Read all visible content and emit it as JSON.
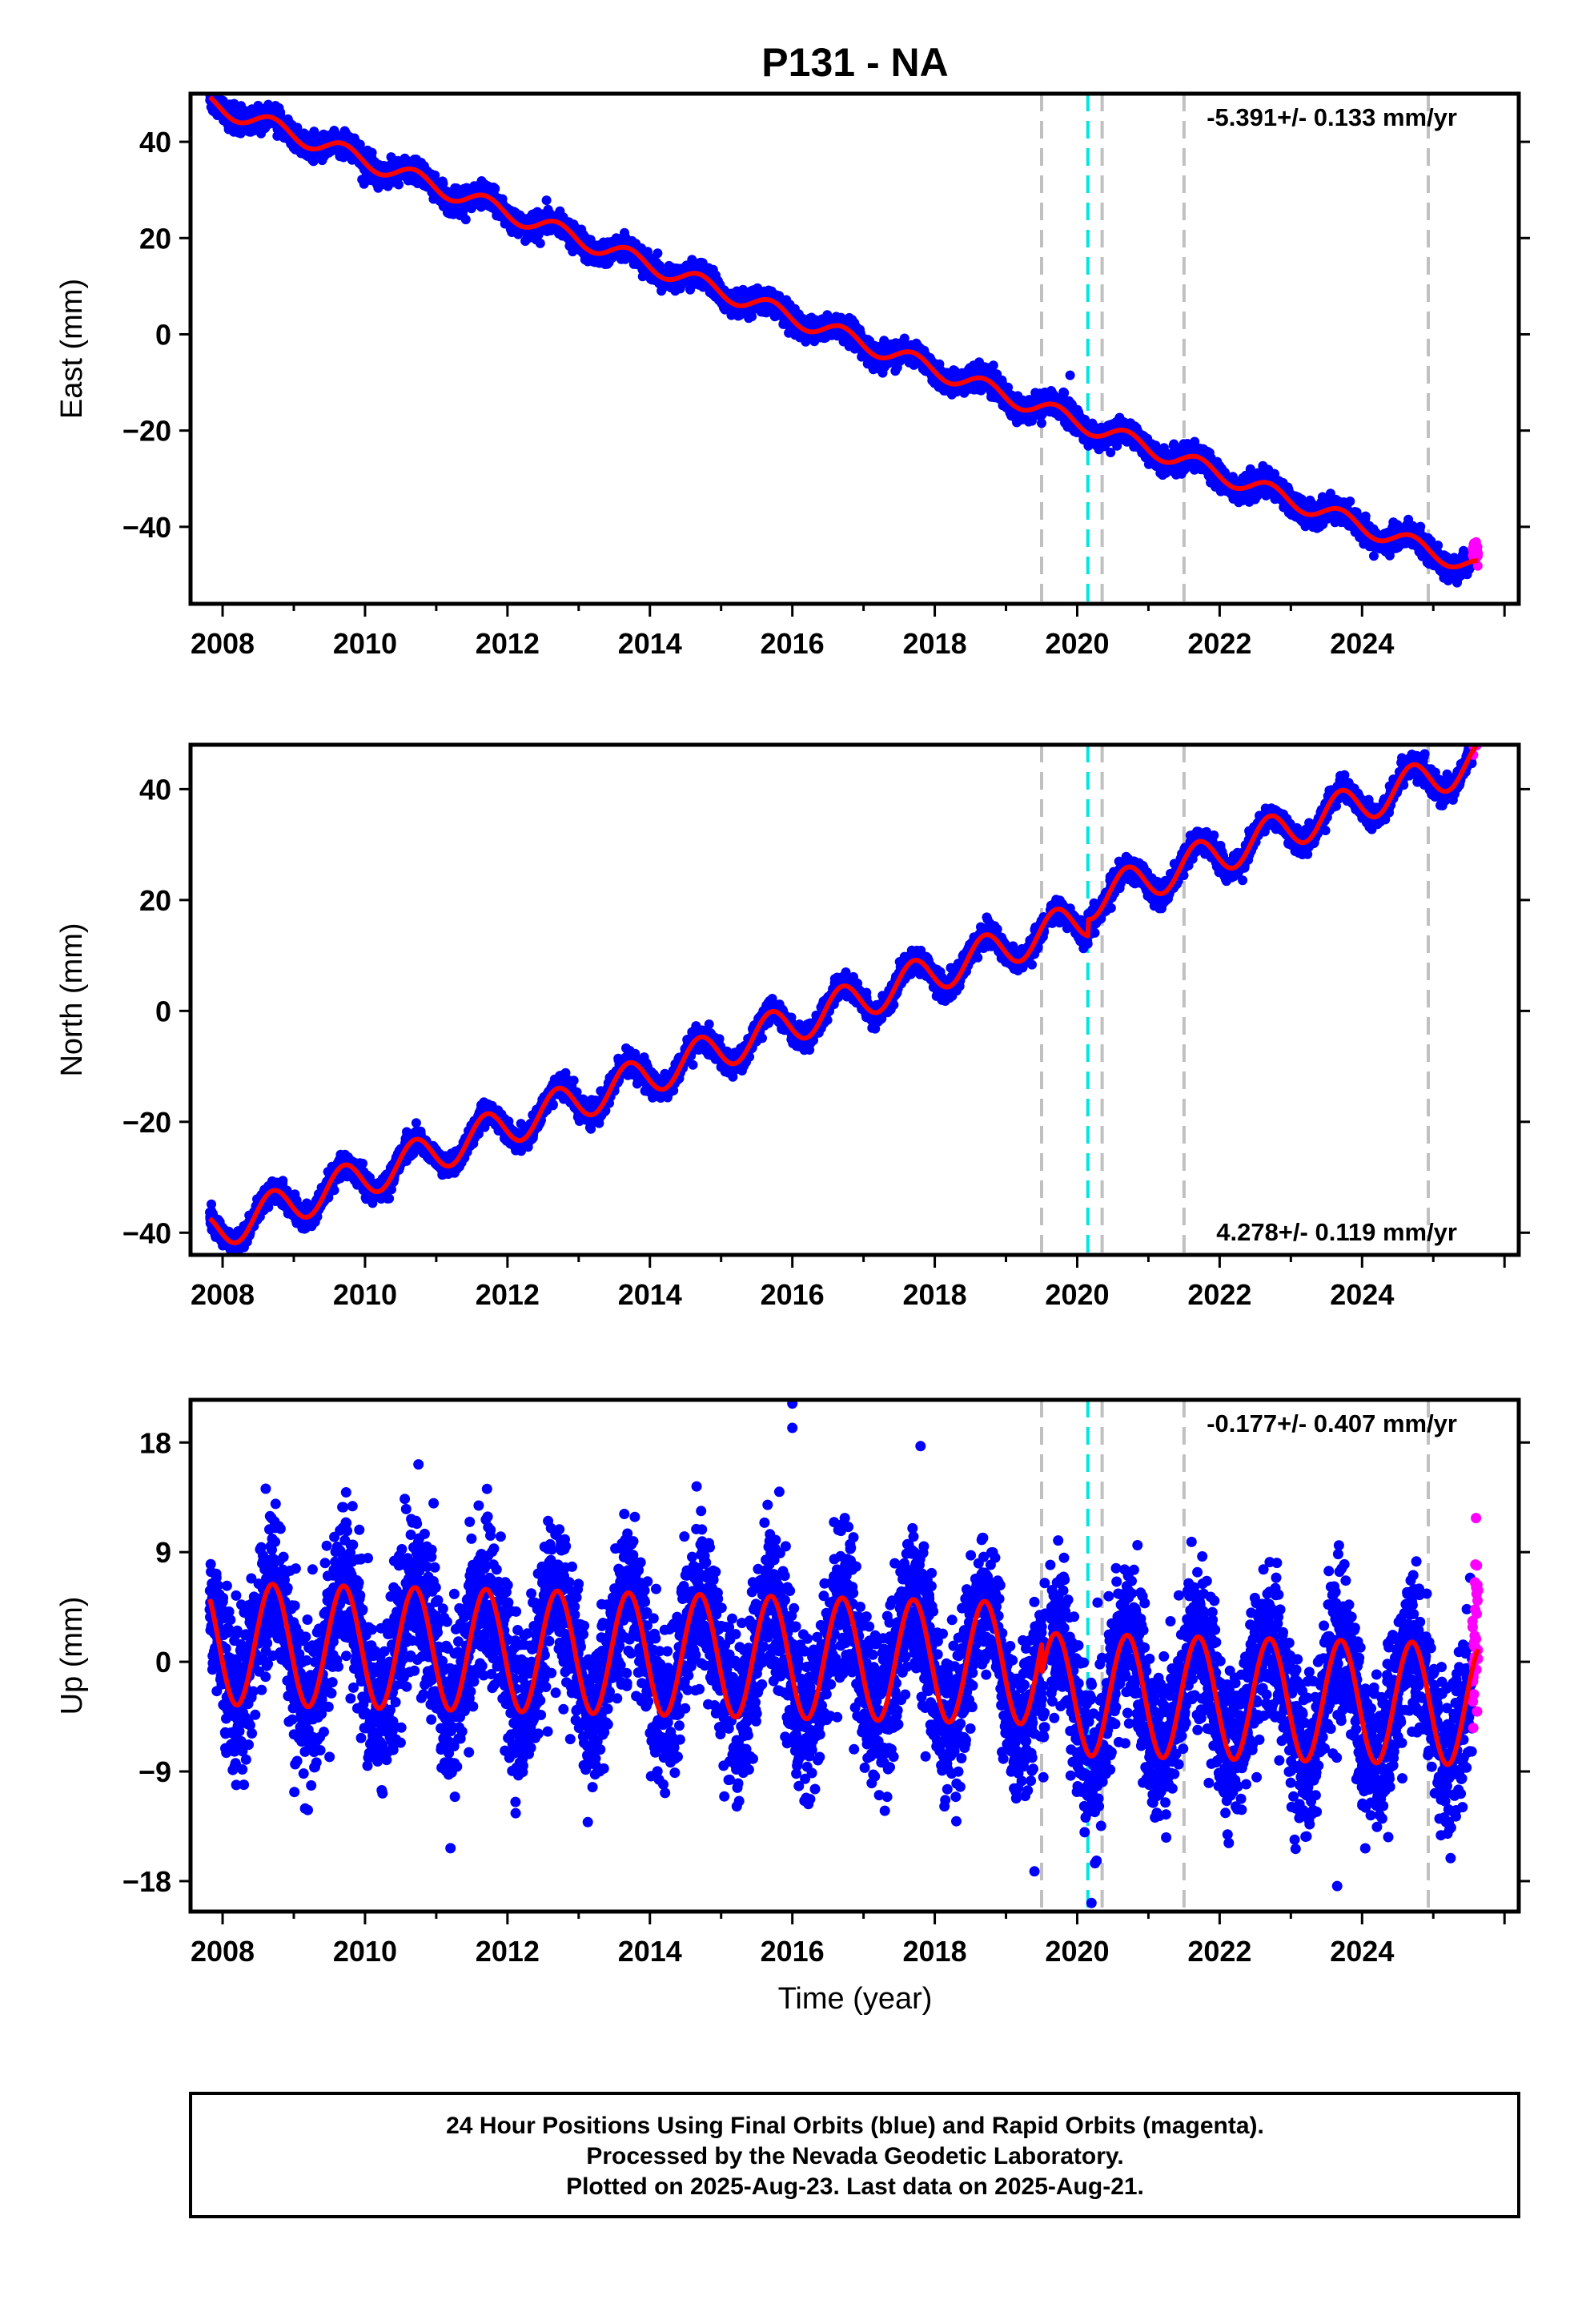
{
  "chart_data": {
    "type": "scatter",
    "title": "P131 - NA",
    "x_ticks": [
      "2008",
      "2010",
      "2012",
      "2014",
      "2016",
      "2018",
      "2020",
      "2022",
      "2024"
    ],
    "xlim": [
      2007.55,
      2026.2
    ],
    "xlabel": "Time (year)",
    "colors": {
      "final_orbits": "#0000ff",
      "rapid_orbits": "#ff00ff",
      "model_fit": "#ff0000",
      "event_gray": "#c0c0c0",
      "event_cyan": "#00e5e5"
    },
    "event_lines": {
      "gray": [
        2019.5,
        2020.35,
        2021.5,
        2024.93
      ],
      "cyan": [
        2020.15
      ]
    },
    "data_range": {
      "first": 2007.82,
      "last_final": 2025.55,
      "last": 2025.63
    },
    "panels": [
      {
        "id": "east",
        "ylabel": "East (mm)",
        "ylim": [
          -56,
          50
        ],
        "yticks": [
          -40,
          -20,
          0,
          20,
          40
        ],
        "ytick_labels": [
          "−40",
          "−20",
          "0",
          "20",
          "40"
        ],
        "rate": "-5.391+/- 0.133 mm/yr",
        "rate_position": "top-right",
        "trend": {
          "start_year": 2007.82,
          "start_value": 48,
          "end_year": 2025.6,
          "end_value": -48.5
        },
        "seasonal_amplitude": 1.8,
        "scatter_sd": 1.2,
        "offsets": [],
        "outliers": [
          {
            "x": 2019.9,
            "y": -8.5
          }
        ]
      },
      {
        "id": "north",
        "ylabel": "North (mm)",
        "ylim": [
          -44,
          48
        ],
        "yticks": [
          -40,
          -20,
          0,
          20,
          40
        ],
        "ytick_labels": [
          "−40",
          "−20",
          "0",
          "20",
          "40"
        ],
        "rate": "4.278+/- 0.119 mm/yr",
        "rate_position": "bottom-right",
        "trend": {
          "start_year": 2007.82,
          "start_value": -40,
          "end_year": 2025.6,
          "end_value": 42
        },
        "seasonal_amplitude": 3.5,
        "scatter_sd": 1.0,
        "offsets": [
          {
            "year": 2020.15,
            "value": 3
          }
        ],
        "outliers": []
      },
      {
        "id": "up",
        "ylabel": "Up (mm)",
        "ylim": [
          -20.5,
          21.5
        ],
        "yticks": [
          -18,
          -9,
          0,
          9,
          18
        ],
        "ytick_labels": [
          "−18",
          "−9",
          "0",
          "9",
          "18"
        ],
        "rate": "-0.177+/- 0.407 mm/yr",
        "rate_position": "top-right",
        "trend": {
          "start_year": 2007.82,
          "start_value": 1.5,
          "end_year": 2025.6,
          "end_value": -1.0
        },
        "seasonal_amplitude": 5.0,
        "scatter_sd": 3.2,
        "offsets": [
          {
            "year": 2019.5,
            "value": -2.5
          }
        ],
        "outliers": [
          {
            "x": 2016.0,
            "y": 21.2
          },
          {
            "x": 2016.0,
            "y": 19.2
          },
          {
            "x": 2010.75,
            "y": 16.2
          },
          {
            "x": 2017.8,
            "y": 17.7
          },
          {
            "x": 2020.2,
            "y": -19.8
          },
          {
            "x": 2023.65,
            "y": -18.4
          },
          {
            "x": 2011.2,
            "y": -15.3
          },
          {
            "x": 2019.4,
            "y": -17.2
          },
          {
            "x": 2025.6,
            "y": 11.8
          }
        ]
      }
    ]
  },
  "footer": {
    "line1": "24 Hour Positions Using Final Orbits (blue) and Rapid Orbits (magenta).",
    "line2": "Processed by the Nevada Geodetic Laboratory.",
    "line3": "Plotted on 2025-Aug-23. Last data on 2025-Aug-21."
  }
}
